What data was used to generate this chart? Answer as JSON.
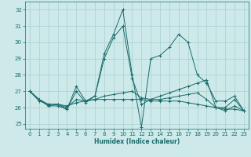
{
  "title": "",
  "xlabel": "Humidex (Indice chaleur)",
  "background_color": "#cde9e9",
  "grid_color": "#aacece",
  "line_color": "#1a6b6b",
  "xlim": [
    -0.5,
    23.5
  ],
  "ylim": [
    24.7,
    32.5
  ],
  "xticks": [
    0,
    1,
    2,
    3,
    4,
    5,
    6,
    7,
    8,
    9,
    10,
    11,
    12,
    13,
    14,
    15,
    16,
    17,
    18,
    19,
    20,
    21,
    22,
    23
  ],
  "yticks": [
    25,
    26,
    27,
    28,
    29,
    30,
    31,
    32
  ],
  "series": [
    [
      27.0,
      26.5,
      26.1,
      26.1,
      25.9,
      27.3,
      26.4,
      26.7,
      29.3,
      30.5,
      32.0,
      28.0,
      24.8,
      29.0,
      29.2,
      29.7,
      30.5,
      30.0,
      28.0,
      27.5,
      26.4,
      26.4,
      26.7,
      25.8
    ],
    [
      27.0,
      26.5,
      26.1,
      26.2,
      25.9,
      27.0,
      26.3,
      26.7,
      29.0,
      30.3,
      31.0,
      27.8,
      26.2,
      26.5,
      26.7,
      26.9,
      27.1,
      27.3,
      27.5,
      27.7,
      26.0,
      26.0,
      26.5,
      25.8
    ],
    [
      27.0,
      26.5,
      26.2,
      26.2,
      26.0,
      26.5,
      26.4,
      26.5,
      26.7,
      26.8,
      26.9,
      27.0,
      26.6,
      26.5,
      26.5,
      26.6,
      26.7,
      26.8,
      26.9,
      26.5,
      26.0,
      25.8,
      26.1,
      25.8
    ],
    [
      27.0,
      26.4,
      26.2,
      26.2,
      26.1,
      26.3,
      26.4,
      26.5,
      26.5,
      26.5,
      26.5,
      26.5,
      26.5,
      26.4,
      26.4,
      26.4,
      26.4,
      26.3,
      26.2,
      26.1,
      26.0,
      25.9,
      25.9,
      25.8
    ]
  ]
}
